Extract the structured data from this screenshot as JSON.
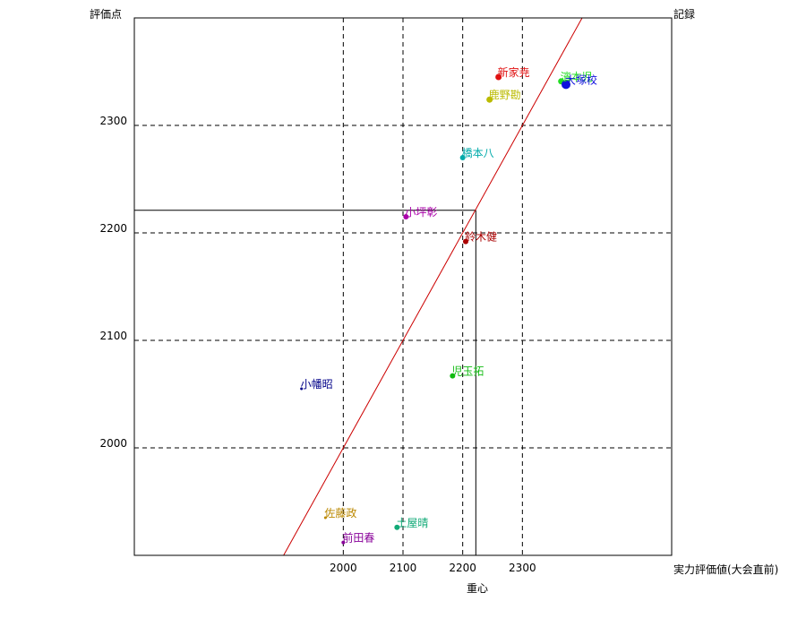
{
  "chart_data": {
    "type": "scatter",
    "title": "",
    "xlabel": "実力評価値(大会直前)",
    "ylabel": "評価点",
    "top_right_label": "記録",
    "center_label": "重心",
    "xlim": [
      1650,
      2550
    ],
    "ylim": [
      1900,
      2400
    ],
    "x_ticks": [
      2000,
      2100,
      2200,
      2300
    ],
    "y_ticks": [
      2000,
      2100,
      2200,
      2300
    ],
    "grid": "dashed",
    "centroid": {
      "x": 2222,
      "y": 2221
    },
    "reference_line": {
      "slope": 1,
      "color": "#cc0000"
    },
    "points": [
      {
        "name": "新家尭",
        "x": 2260,
        "y": 2345,
        "color": "#e01010",
        "size": 3.5
      },
      {
        "name": "濱本児",
        "x": 2365,
        "y": 2341,
        "color": "#22dd22",
        "size": 3.5
      },
      {
        "name": "大塚校",
        "x": 2373,
        "y": 2338,
        "color": "#1010dd",
        "size": 5
      },
      {
        "name": "鹿野勘",
        "x": 2245,
        "y": 2324,
        "color": "#bbbb00",
        "size": 3.5
      },
      {
        "name": "橋本八",
        "x": 2200,
        "y": 2270,
        "color": "#00aaaa",
        "size": 3
      },
      {
        "name": "小坪彰",
        "x": 2105,
        "y": 2215,
        "color": "#aa00aa",
        "size": 3
      },
      {
        "name": "鈴木健",
        "x": 2205,
        "y": 2192,
        "color": "#aa0000",
        "size": 3
      },
      {
        "name": "児玉拓",
        "x": 2183,
        "y": 2067,
        "color": "#11bb11",
        "size": 3
      },
      {
        "name": "小幡昭",
        "x": 1930,
        "y": 2055,
        "color": "#000088",
        "size": 1.5
      },
      {
        "name": "佐藤政",
        "x": 1970,
        "y": 1935,
        "color": "#bb8800",
        "size": 1.5
      },
      {
        "name": "土屋晴",
        "x": 2090,
        "y": 1926,
        "color": "#11aa77",
        "size": 3
      },
      {
        "name": "前田春",
        "x": 2000,
        "y": 1912,
        "color": "#880099",
        "size": 2
      }
    ]
  }
}
